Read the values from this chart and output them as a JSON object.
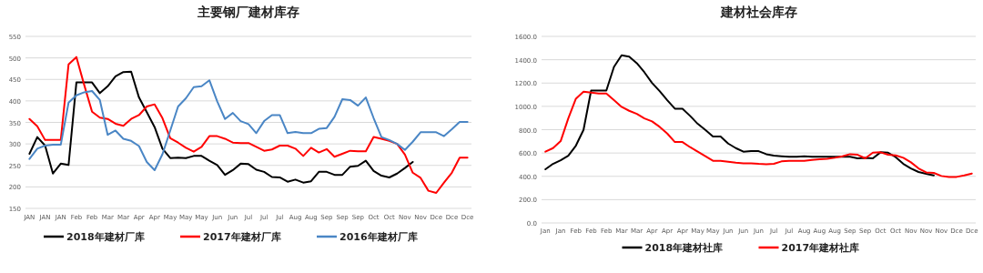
{
  "chart_data": [
    {
      "type": "line",
      "title": "主要钢厂建材库存",
      "grid": "y",
      "legend": "bottom",
      "categories": [
        "JAN",
        null,
        "JAN",
        null,
        "JAN",
        null,
        "Feb",
        null,
        "Feb",
        null,
        "Mar",
        null,
        "Mar",
        null,
        "Apr",
        null,
        "Apr",
        null,
        "May",
        null,
        "May",
        null,
        "May",
        null,
        "Jun",
        null,
        "Jun",
        null,
        "Jul",
        null,
        "Jul",
        null,
        "Jul",
        null,
        "Aug",
        null,
        "Aug",
        null,
        "Sep",
        null,
        "Sep",
        null,
        "Sep",
        null,
        "Oct",
        null,
        "Oct",
        null,
        "Nov",
        null,
        "Nov",
        null,
        "Dce",
        null,
        "Dce",
        null,
        "Dce"
      ],
      "ylim": [
        150,
        550
      ],
      "yticks": [
        150,
        200,
        250,
        300,
        350,
        400,
        450,
        500,
        550
      ],
      "series": [
        {
          "name": "2018年建材厂库",
          "color": "#000000",
          "values": [
            277,
            316,
            296,
            231,
            254,
            251,
            443,
            443,
            443,
            418,
            434,
            457,
            467,
            468,
            408,
            374,
            339,
            289,
            267,
            268,
            267,
            272,
            272,
            261,
            251,
            228,
            239,
            254,
            253,
            240,
            235,
            223,
            222,
            212,
            217,
            210,
            213,
            235,
            235,
            228,
            228,
            247,
            249,
            261,
            237,
            226,
            222,
            231,
            244,
            258,
            null,
            null,
            null,
            null,
            null,
            null,
            null
          ]
        },
        {
          "name": "2017年建材厂库",
          "color": "#ff0000",
          "values": [
            358,
            341,
            309,
            309,
            309,
            485,
            502,
            437,
            375,
            361,
            358,
            347,
            342,
            358,
            367,
            387,
            392,
            360,
            313,
            303,
            291,
            282,
            293,
            318,
            318,
            312,
            303,
            302,
            302,
            293,
            284,
            287,
            296,
            296,
            289,
            272,
            291,
            280,
            288,
            270,
            277,
            284,
            283,
            283,
            316,
            312,
            307,
            300,
            275,
            233,
            221,
            191,
            186,
            210,
            233,
            268,
            268
          ]
        },
        {
          "name": "2016年建材厂库",
          "color": "#4a86c5",
          "values": [
            265,
            289,
            296,
            298,
            298,
            396,
            413,
            420,
            423,
            402,
            321,
            331,
            312,
            307,
            295,
            258,
            239,
            276,
            331,
            387,
            406,
            432,
            434,
            448,
            399,
            358,
            372,
            353,
            346,
            325,
            353,
            367,
            367,
            325,
            328,
            325,
            325,
            335,
            337,
            363,
            404,
            402,
            389,
            408,
            360,
            316,
            309,
            300,
            286,
            305,
            327,
            327,
            327,
            318,
            334,
            351,
            351
          ]
        }
      ]
    },
    {
      "type": "line",
      "title": "建材社会库存",
      "grid": "y",
      "legend": "bottom",
      "categories": [
        "Jan",
        null,
        "Jan",
        null,
        "Feb",
        null,
        "Feb",
        null,
        "Feb",
        null,
        "Mar",
        null,
        "Mar",
        null,
        "Apr",
        null,
        "Apr",
        null,
        "Apr",
        null,
        "May",
        null,
        "May",
        null,
        "Jun",
        null,
        "Jun",
        null,
        "Jun",
        null,
        "Jul",
        null,
        "Jul",
        null,
        "Aug",
        null,
        "Aug",
        null,
        "Aug",
        null,
        "Sep",
        null,
        "Sep",
        null,
        "Oct",
        null,
        "Oct",
        null,
        "Nov",
        null,
        "Nov",
        null,
        "Nov",
        null,
        "Dce",
        null,
        "Dce"
      ],
      "ylim": [
        0,
        1600
      ],
      "yticks": [
        {
          "value": 0,
          "label": "0.0"
        },
        {
          "value": 200,
          "label": "200.0"
        },
        {
          "value": 400,
          "label": "400.0"
        },
        {
          "value": 600,
          "label": "600.0"
        },
        {
          "value": 800,
          "label": "800.0"
        },
        {
          "value": 1000,
          "label": "1000.0"
        },
        {
          "value": 1200,
          "label": "1200.0"
        },
        {
          "value": 1400,
          "label": "1400.0"
        },
        {
          "value": 1600,
          "label": "1600.0"
        }
      ],
      "series": [
        {
          "name": "2018年建材社库",
          "color": "#000000",
          "values": [
            460,
            507,
            538,
            577,
            663,
            798,
            1136,
            1136,
            1136,
            1339,
            1438,
            1427,
            1370,
            1292,
            1201,
            1131,
            1053,
            980,
            980,
            918,
            850,
            798,
            741,
            741,
            681,
            642,
            611,
            616,
            616,
            590,
            577,
            572,
            567,
            567,
            572,
            567,
            567,
            567,
            567,
            567,
            567,
            554,
            559,
            554,
            606,
            603,
            564,
            507,
            468,
            437,
            421,
            408,
            null,
            null,
            null,
            null,
            null
          ]
        },
        {
          "name": "2017年建材社库",
          "color": "#ff0000",
          "values": [
            611,
            642,
            702,
            897,
            1066,
            1126,
            1118,
            1110,
            1110,
            1053,
            996,
            962,
            936,
            897,
            871,
            824,
            767,
            694,
            694,
            650,
            611,
            572,
            533,
            533,
            525,
            517,
            512,
            512,
            507,
            504,
            507,
            528,
            533,
            533,
            533,
            541,
            546,
            551,
            559,
            572,
            590,
            585,
            554,
            603,
            606,
            585,
            580,
            559,
            520,
            468,
            434,
            429,
            403,
            395,
            395,
            408,
            424
          ]
        }
      ]
    }
  ]
}
